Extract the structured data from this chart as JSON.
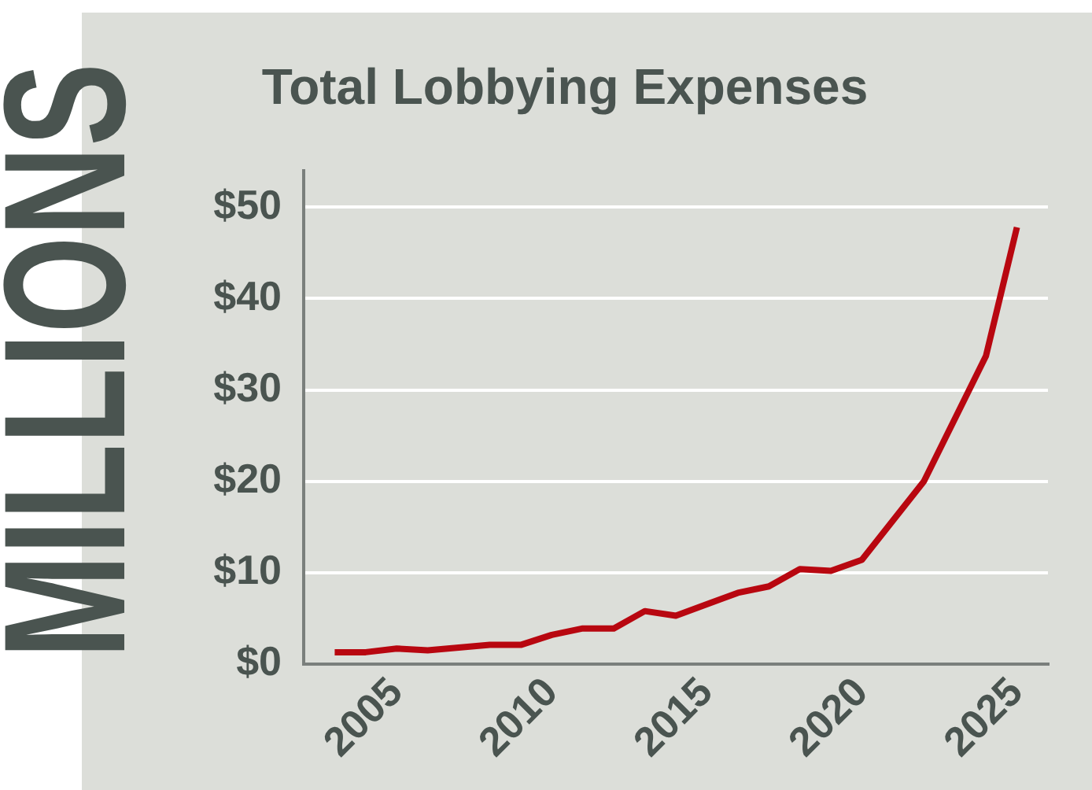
{
  "chart_data": {
    "type": "line",
    "title": "Total Lobbying Expenses",
    "ylabel": "MILLIONS",
    "x": [
      2003,
      2004,
      2005,
      2006,
      2008,
      2009,
      2010,
      2011,
      2012,
      2013,
      2014,
      2016,
      2017,
      2018,
      2019,
      2020,
      2022,
      2024,
      2025
    ],
    "series": [
      {
        "color": "#b80710",
        "values": [
          1.3,
          1.3,
          1.7,
          1.5,
          2.1,
          2.1,
          3.2,
          3.9,
          3.9,
          5.8,
          5.3,
          7.8,
          8.5,
          10.4,
          10.2,
          11.4,
          20.0,
          33.7,
          47.8
        ]
      }
    ],
    "xlim": [
      2002,
      2026
    ],
    "ylim": [
      0,
      54
    ],
    "xticks": [
      2005,
      2010,
      2015,
      2020,
      2025
    ],
    "yticks": [
      {
        "value": 0,
        "label": "$0"
      },
      {
        "value": 10,
        "label": "$10"
      },
      {
        "value": 20,
        "label": "$20"
      },
      {
        "value": 30,
        "label": "$30"
      },
      {
        "value": 40,
        "label": "$40"
      },
      {
        "value": 50,
        "label": "$50"
      }
    ],
    "grid": "y",
    "marker": "none"
  }
}
